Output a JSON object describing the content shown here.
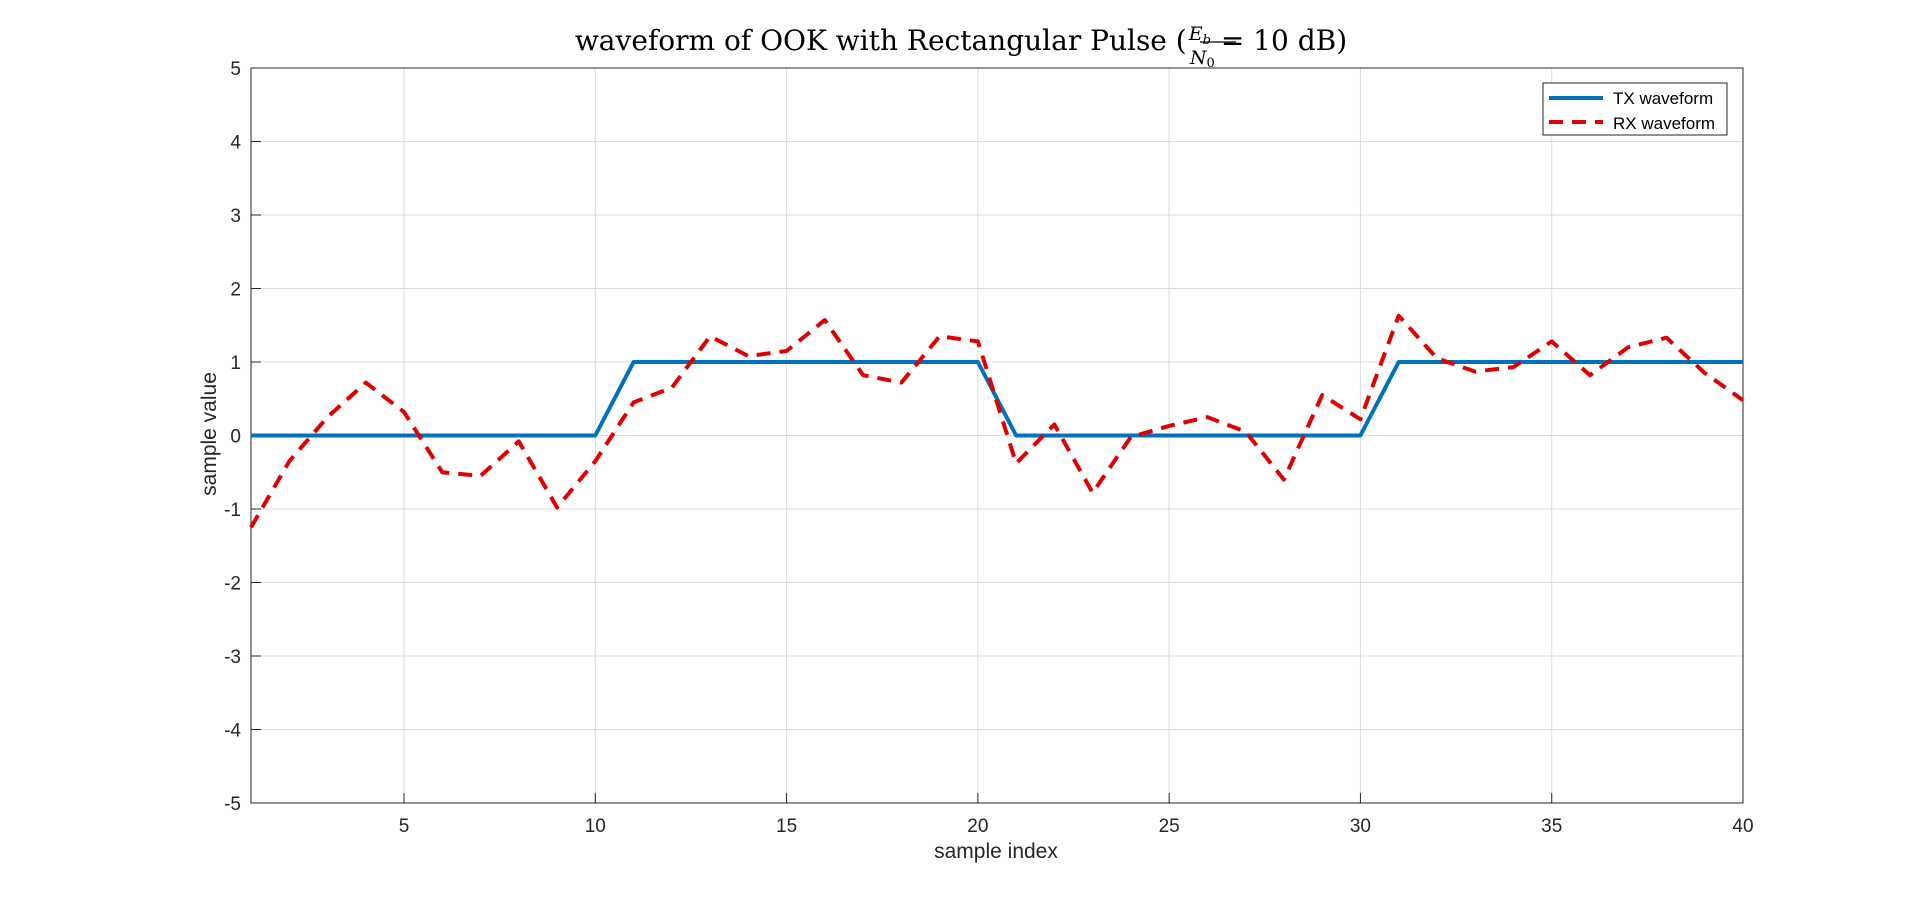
{
  "chart_data": {
    "type": "line",
    "title_main": "waveform of OOK with Rectangular Pulse (",
    "title_frac_num": "E",
    "title_frac_num_sub": "b",
    "title_frac_den": "N",
    "title_frac_den_sub": "0",
    "title_tail": "= 10 dB)",
    "xlabel": "sample index",
    "ylabel": "sample value",
    "xlim": [
      1,
      40
    ],
    "ylim": [
      -5,
      5
    ],
    "xticks": [
      5,
      10,
      15,
      20,
      25,
      30,
      35,
      40
    ],
    "yticks": [
      5,
      4,
      3,
      2,
      1,
      0,
      -1,
      -2,
      -3,
      -4,
      -5
    ],
    "grid": true,
    "legend_position": "top-right",
    "series": [
      {
        "name": "TX waveform",
        "color": "#0072BD",
        "style": "solid",
        "x": [
          1,
          2,
          3,
          4,
          5,
          6,
          7,
          8,
          9,
          10,
          11,
          12,
          13,
          14,
          15,
          16,
          17,
          18,
          19,
          20,
          21,
          22,
          23,
          24,
          25,
          26,
          27,
          28,
          29,
          30,
          31,
          32,
          33,
          34,
          35,
          36,
          37,
          38,
          39,
          40
        ],
        "values": [
          0,
          0,
          0,
          0,
          0,
          0,
          0,
          0,
          0,
          0,
          1,
          1,
          1,
          1,
          1,
          1,
          1,
          1,
          1,
          1,
          0,
          0,
          0,
          0,
          0,
          0,
          0,
          0,
          0,
          0,
          1,
          1,
          1,
          1,
          1,
          1,
          1,
          1,
          1,
          1
        ]
      },
      {
        "name": "RX waveform",
        "color": "#E00000",
        "style": "dashed",
        "x": [
          1,
          2,
          3,
          4,
          5,
          6,
          7,
          8,
          9,
          10,
          11,
          12,
          13,
          14,
          15,
          16,
          17,
          18,
          19,
          20,
          21,
          22,
          23,
          24,
          25,
          26,
          27,
          28,
          29,
          30,
          31,
          32,
          33,
          34,
          35,
          36,
          37,
          38,
          39,
          40
        ],
        "values": [
          -1.25,
          -0.35,
          0.25,
          0.72,
          0.32,
          -0.5,
          -0.55,
          -0.08,
          -0.98,
          -0.35,
          0.45,
          0.65,
          1.35,
          1.08,
          1.15,
          1.57,
          0.82,
          0.72,
          1.35,
          1.28,
          -0.38,
          0.15,
          -0.78,
          -0.02,
          0.13,
          0.25,
          0.05,
          -0.6,
          0.55,
          0.22,
          1.63,
          1.05,
          0.87,
          0.93,
          1.28,
          0.82,
          1.2,
          1.33,
          0.85,
          0.48
        ]
      }
    ]
  }
}
